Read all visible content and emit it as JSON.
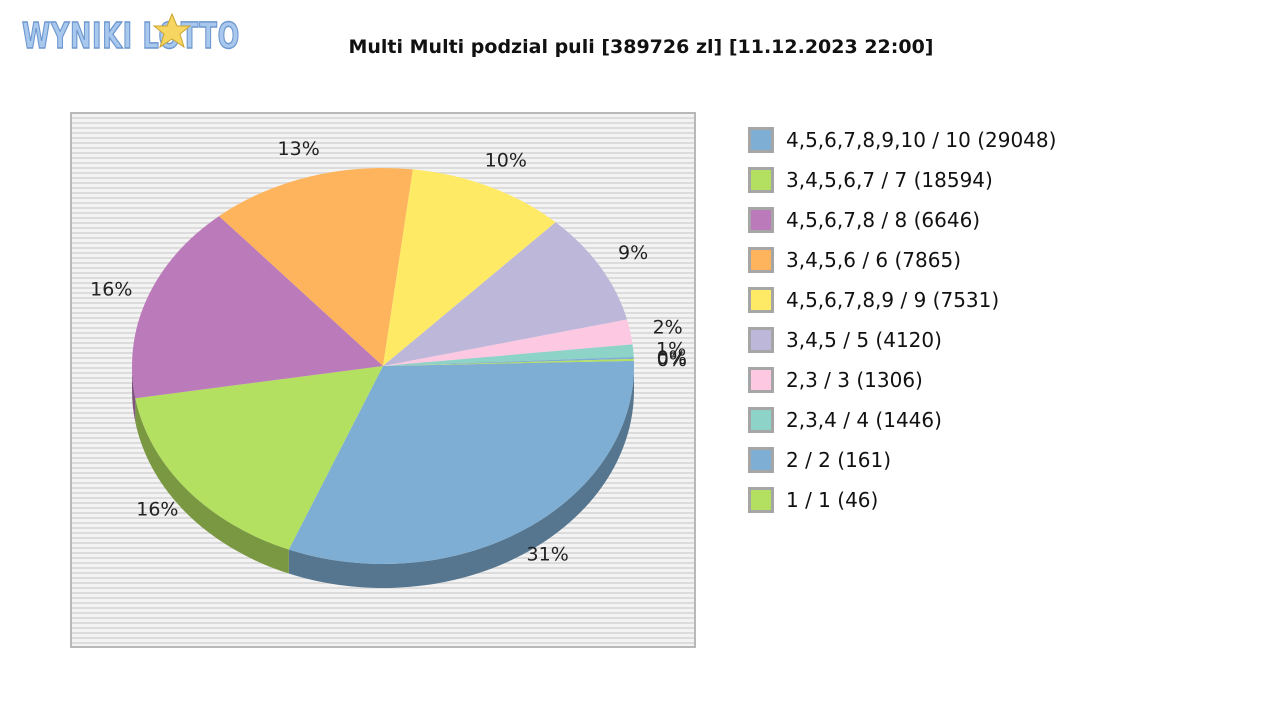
{
  "logo": {
    "text": "WYNIKI LOTTO"
  },
  "chart_data": {
    "type": "pie",
    "title": "Multi Multi podzial puli [389726 zl] [11.12.2023 22:00]",
    "categories": [
      "4,5,6,7,8,9,10 / 10 (29048)",
      "3,4,5,6,7 / 7 (18594)",
      "4,5,6,7,8 / 8 (6646)",
      "3,4,5,6 / 6 (7865)",
      "4,5,6,7,8,9 / 9 (7531)",
      "3,4,5 / 5 (4120)",
      "2,3 / 3 (1306)",
      "2,3,4 / 4 (1446)",
      "2 / 2 (161)",
      "1 / 1 (46)"
    ],
    "values": [
      31,
      16,
      16,
      13,
      10,
      9,
      2,
      1,
      0,
      0
    ],
    "slice_labels": [
      "31%",
      "16%",
      "16%",
      "13%",
      "10%",
      "9%",
      "2%",
      "1%",
      "0%",
      "0%"
    ],
    "colors": [
      "#7eaed3",
      "#b3e060",
      "#bb7bba",
      "#fdb45c",
      "#ffea66",
      "#bdb7d9",
      "#fcc8e2",
      "#8dd3c7",
      "#7eaed3",
      "#b3e060"
    ],
    "legend_position": "right",
    "style": "3d"
  }
}
